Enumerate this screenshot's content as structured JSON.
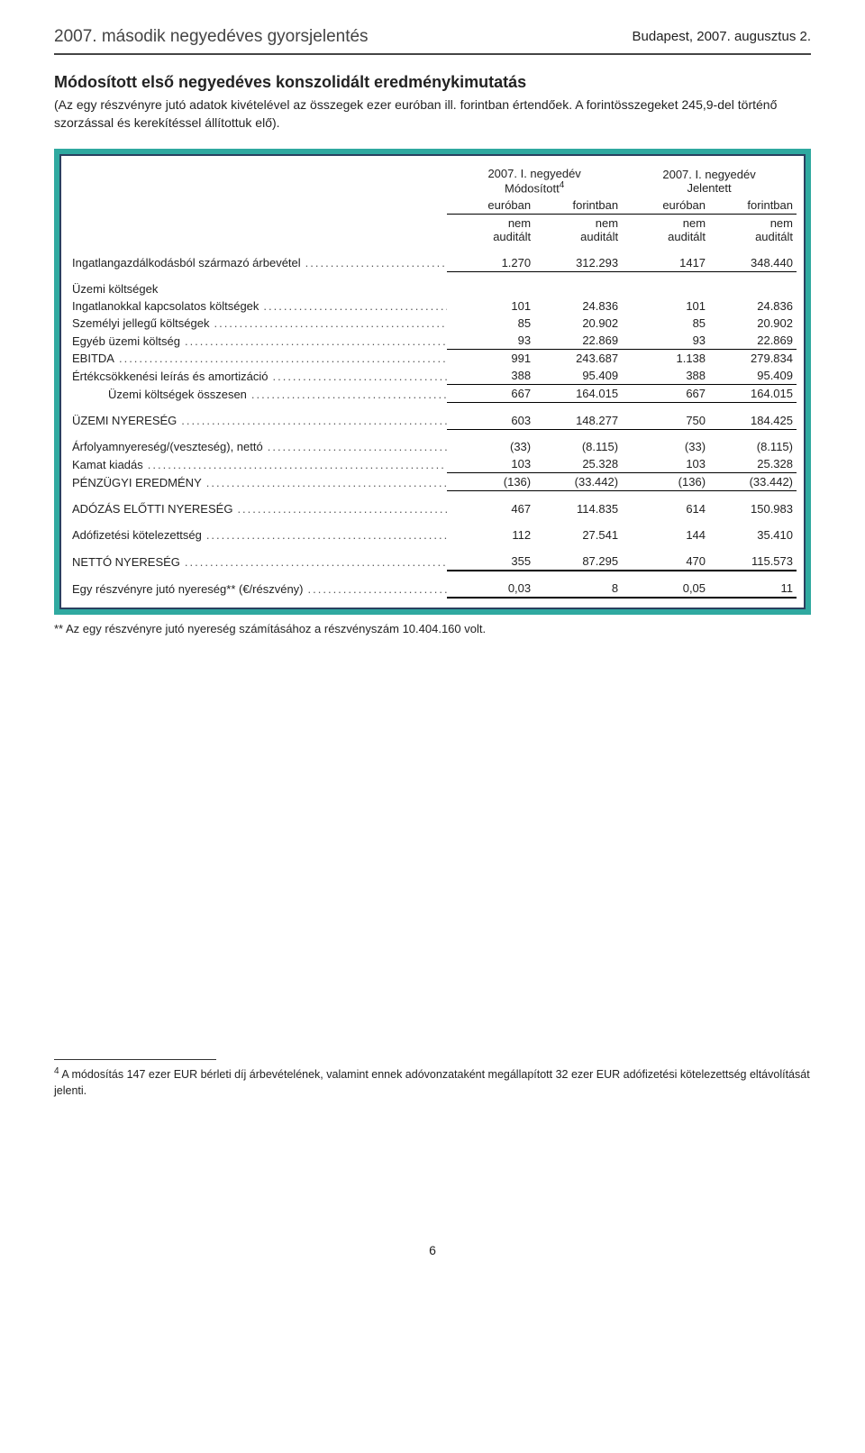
{
  "header": {
    "doc_title": "2007. második negyedéves gyorsjelentés",
    "date_location": "Budapest, 2007. augusztus 2."
  },
  "section": {
    "title": "Módosított első negyedéves konszolidált eredménykimutatás",
    "subtitle": "(Az egy részvényre jutó adatok kivételével az összegek ezer euróban ill. forintban értendőek. A forintösszegeket 245,9-del történő szorzással és kerekítéssel állítottuk elő)."
  },
  "table": {
    "group_left": "2007. I. negyedév\nMódosított⁴",
    "group_left_l1": "2007. I. negyedév",
    "group_left_l2": "Módosított",
    "group_left_sup": "4",
    "group_right_l1": "2007. I. negyedév",
    "group_right_l2": "Jelentett",
    "col1": "euróban",
    "col2": "forintban",
    "col3": "euróban",
    "col4": "forintban",
    "sub": "nem\nauditált",
    "sub_l1": "nem",
    "sub_l2": "auditált",
    "rows": {
      "r1": {
        "label": "Ingatlangazdálkodásból származó árbevétel",
        "c1": "1.270",
        "c2": "312.293",
        "c3": "1417",
        "c4": "348.440",
        "ul": true
      },
      "sec1": {
        "label": "Üzemi költségek"
      },
      "r2": {
        "label": "Ingatlanokkal kapcsolatos költségek",
        "c1": "101",
        "c2": "24.836",
        "c3": "101",
        "c4": "24.836"
      },
      "r3": {
        "label": "Személyi jellegű költségek",
        "c1": "85",
        "c2": "20.902",
        "c3": "85",
        "c4": "20.902"
      },
      "r4": {
        "label": "Egyéb üzemi költség",
        "c1": "93",
        "c2": "22.869",
        "c3": "93",
        "c4": "22.869",
        "ul": true
      },
      "r5": {
        "label": "EBITDA",
        "c1": "991",
        "c2": "243.687",
        "c3": "1.138",
        "c4": "279.834"
      },
      "r6": {
        "label": "Értékcsökkenési leírás és amortizáció",
        "c1": "388",
        "c2": "95.409",
        "c3": "388",
        "c4": "95.409",
        "ul": true
      },
      "r7": {
        "label": "Üzemi költségek összesen",
        "c1": "667",
        "c2": "164.015",
        "c3": "667",
        "c4": "164.015",
        "ul": true,
        "indent": true
      },
      "r8": {
        "label": "ÜZEMI NYERESÉG",
        "c1": "603",
        "c2": "148.277",
        "c3": "750",
        "c4": "184.425",
        "ul": true
      },
      "r9": {
        "label": "Árfolyamnyereség/(veszteség), nettó",
        "c1": "(33)",
        "c2": "(8.115)",
        "c3": "(33)",
        "c4": "(8.115)"
      },
      "r10": {
        "label": "Kamat kiadás",
        "c1": "103",
        "c2": "25.328",
        "c3": "103",
        "c4": "25.328",
        "ul": true
      },
      "r11": {
        "label": "PÉNZÜGYI EREDMÉNY",
        "c1": "(136)",
        "c2": "(33.442)",
        "c3": "(136)",
        "c4": "(33.442)",
        "ul": true
      },
      "r12": {
        "label": "ADÓZÁS ELŐTTI NYERESÉG",
        "c1": "467",
        "c2": "114.835",
        "c3": "614",
        "c4": "150.983"
      },
      "r13": {
        "label": "Adófizetési kötelezettség",
        "c1": "112",
        "c2": "27.541",
        "c3": "144",
        "c4": "35.410"
      },
      "r14": {
        "label": "NETTÓ NYERESÉG",
        "c1": "355",
        "c2": "87.295",
        "c3": "470",
        "c4": "115.573",
        "ul2": true
      },
      "r15": {
        "label": "Egy részvényre jutó nyereség** (€/részvény)",
        "c1": "0,03",
        "c2": "8",
        "c3": "0,05",
        "c4": "11",
        "ul2": true
      }
    }
  },
  "footnote_below_table": "** Az egy részvényre jutó nyereség számításához a részvényszám 10.404.160 volt.",
  "footnote_bottom": "⁴ A módosítás 147 ezer EUR bérleti díj árbevételének, valamint ennek adóvonzataként megállapított 32 ezer EUR adófizetési kötelezettség eltávolítását jelenti.",
  "footnote_bottom_marker": "4",
  "footnote_bottom_text": " A módosítás 147 ezer EUR bérleti díj árbevételének, valamint ennek adóvonzataként megállapított 32 ezer EUR adófizetési kötelezettség eltávolítását jelenti.",
  "page_number": "6",
  "colors": {
    "frame_outer": "#2fa9a0",
    "frame_inner": "#2a4060",
    "text": "#333333"
  }
}
